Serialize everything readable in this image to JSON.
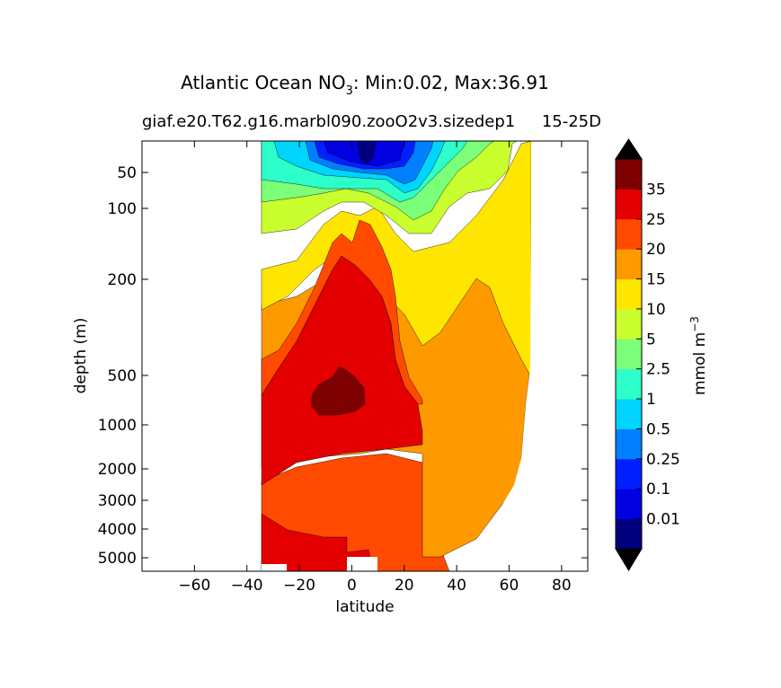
{
  "chart_data": {
    "type": "contour",
    "title_main": "Atlantic Ocean NO",
    "title_sub3": "3",
    "title_rest": ": Min:0.02, Max:36.91",
    "subtitle_left": "giaf.e20.T62.g16.marbl090.zooO2v3.sizedep1",
    "subtitle_right": "15-25D",
    "xlabel": "latitude",
    "ylabel": "depth (m)",
    "xlim": [
      -80,
      90
    ],
    "xticks": [
      "−60",
      "−40",
      "−20",
      "0",
      "20",
      "40",
      "60",
      "80"
    ],
    "xtick_values": [
      -60,
      -40,
      -20,
      0,
      20,
      40,
      60,
      80
    ],
    "yticks": [
      "50",
      "100",
      "200",
      "500",
      "1000",
      "2000",
      "3000",
      "4000",
      "5000"
    ],
    "ytick_values": [
      50,
      100,
      200,
      500,
      1000,
      2000,
      3000,
      4000,
      5000
    ],
    "colorbar": {
      "label": "mmol m",
      "label_sup": "−3",
      "levels": [
        "0.01",
        "0.1",
        "0.25",
        "0.5",
        "1",
        "2.5",
        "5",
        "10",
        "15",
        "20",
        "25",
        "35"
      ],
      "colors": [
        "#00007f",
        "#0000e0",
        "#0020ff",
        "#0080ff",
        "#00d4ff",
        "#2cffc9",
        "#7cff79",
        "#c9ff2e",
        "#ffe600",
        "#ff9900",
        "#ff4a00",
        "#e40000",
        "#7f0000"
      ],
      "extend": "both"
    },
    "data_extent_lat": [
      -34,
      68
    ],
    "min": 0.02,
    "max": 36.91
  }
}
